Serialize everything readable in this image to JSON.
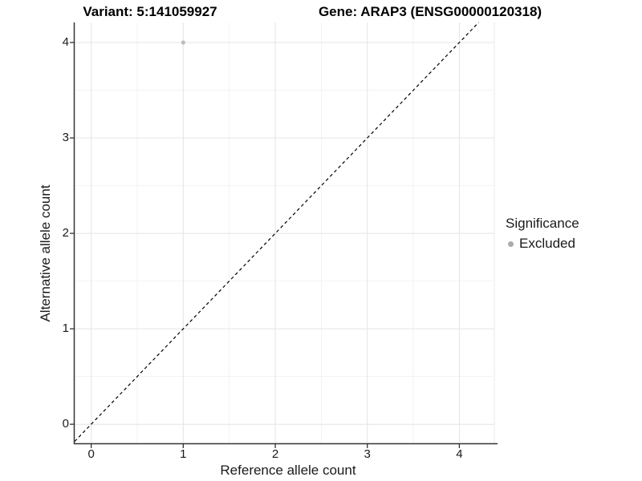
{
  "titles": {
    "left": "Variant: 5:141059927",
    "right": "Gene: ARAP3 (ENSG00000120318)"
  },
  "chart_data": {
    "type": "scatter",
    "title_left": "Variant: 5:141059927",
    "title_right": "Gene: ARAP3 (ENSG00000120318)",
    "xlabel": "Reference allele count",
    "ylabel": "Alternative allele count",
    "x_ticks": [
      0,
      1,
      2,
      3,
      4
    ],
    "y_ticks": [
      0,
      1,
      2,
      3,
      4
    ],
    "xlim": [
      -0.18,
      4.38
    ],
    "ylim": [
      -0.2,
      4.21
    ],
    "grid": "major+minor",
    "legend": {
      "title": "Significance",
      "position": "right",
      "entries": [
        {
          "label": "Excluded",
          "color": "#ababab"
        }
      ]
    },
    "series": [
      {
        "name": "Excluded",
        "color": "#bcbcbc",
        "marker": "circle",
        "points": [
          [
            1,
            4
          ]
        ]
      }
    ],
    "reference_line": {
      "kind": "identity",
      "equation": "y = x",
      "style": "dashed",
      "color": "#000000"
    }
  },
  "colors": {
    "background": "#ffffff",
    "grid_major": "#e4e4e4",
    "grid_minor": "#f2f2f2",
    "panel_edge": "#e8e8e8",
    "axis": "#333333",
    "text": "#1a1a1a",
    "point": "#bcbcbc",
    "legend_point": "#ababab"
  }
}
